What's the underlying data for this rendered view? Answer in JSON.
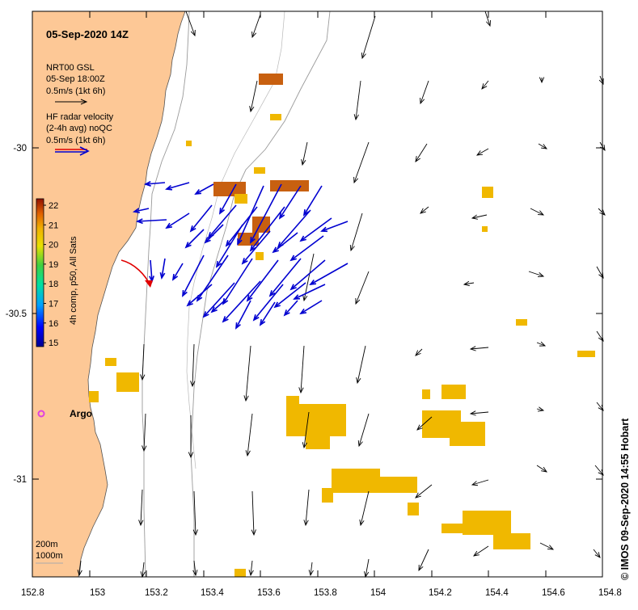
{
  "title": "05-Sep-2020 14Z",
  "legend": {
    "gsl_line1": "NRT00 GSL",
    "gsl_line2": "05-Sep 18:00Z",
    "gsl_line3": "0.5m/s (1kt 6h)",
    "hf_line1": "HF radar velocity",
    "hf_line2": "(2-4h avg) noQC",
    "hf_line3": "0.5m/s (1kt 6h)"
  },
  "colorbar": {
    "label": "4h comp, p50, All Sats",
    "ticks": [
      "22",
      "21",
      "20",
      "19",
      "18",
      "17",
      "16",
      "15"
    ]
  },
  "x_ticks": [
    "152.8",
    "153",
    "153.2",
    "153.4",
    "153.6",
    "153.8",
    "154",
    "154.2",
    "154.4",
    "154.6",
    "154.8"
  ],
  "y_ticks": [
    "-30",
    "-30.5",
    "-31"
  ],
  "argo_label": "Argo",
  "depth_legend": {
    "line1": "200m",
    "line2": "1000m"
  },
  "credit": "© IMOS 09-Sep-2020 14:55 Hobart",
  "colors": {
    "land": "#fdc896",
    "hf_arrow": "#0000d0",
    "gsl_arrow": "#000000",
    "argo_arrow": "#e00000",
    "argo_marker": "#e040e0",
    "sst_warm": "#f0b800",
    "sst_hot": "#c86010"
  }
}
